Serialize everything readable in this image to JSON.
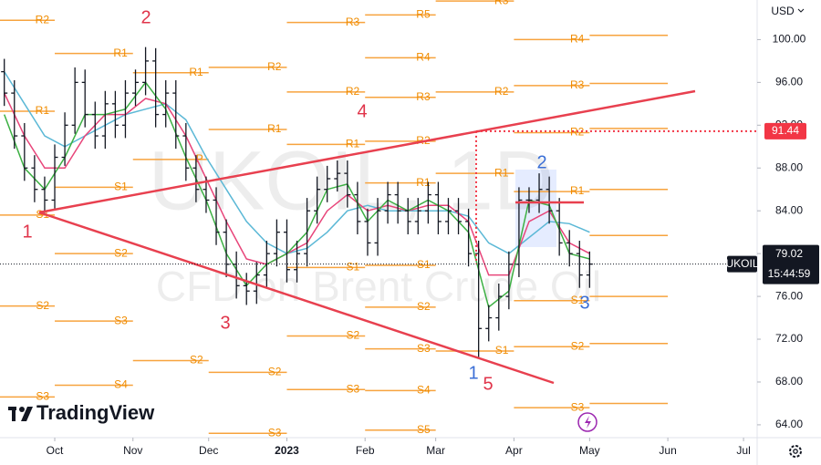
{
  "chart_data": {
    "type": "ohlc",
    "watermark": [
      "UKOIL, 1D",
      "CFD on Brent Crude Oil"
    ],
    "currency": "USD",
    "brand": "TradingView",
    "color": "#131722",
    "xlim": [
      -21.7,
      278.4
    ],
    "ylim": [
      62.8,
      103.7
    ],
    "xticks": [
      {
        "value": 0,
        "label": "Oct"
      },
      {
        "value": 31,
        "label": "Nov"
      },
      {
        "value": 61,
        "label": "Dec"
      },
      {
        "value": 92,
        "label": "2023"
      },
      {
        "value": 123,
        "label": "Feb"
      },
      {
        "value": 151,
        "label": "Mar"
      },
      {
        "value": 182,
        "label": "Apr"
      },
      {
        "value": 212,
        "label": "May"
      },
      {
        "value": 243,
        "label": "Jun"
      },
      {
        "value": 273,
        "label": "Jul"
      }
    ],
    "yticks": [
      {
        "value": 64,
        "label": "64.00"
      },
      {
        "value": 68,
        "label": "68.00"
      },
      {
        "value": 72,
        "label": "72.00"
      },
      {
        "value": 76,
        "label": "76.00"
      },
      {
        "value": 80,
        "label": "80.00"
      },
      {
        "value": 84,
        "label": "84.00"
      },
      {
        "value": 88,
        "label": "88.00"
      },
      {
        "value": 92,
        "label": "92.00"
      },
      {
        "value": 96,
        "label": "96.00"
      },
      {
        "value": 100,
        "label": "100.00"
      }
    ],
    "x": [
      -20,
      -16,
      -12,
      -8,
      -4,
      0,
      4,
      8,
      12,
      16,
      20,
      24,
      28,
      32,
      36,
      40,
      44,
      48,
      52,
      56,
      60,
      64,
      68,
      72,
      76,
      80,
      84,
      88,
      92,
      96,
      100,
      104,
      108,
      112,
      116,
      120,
      124,
      128,
      132,
      136,
      140,
      144,
      148,
      152,
      156,
      160,
      164,
      168,
      172,
      176,
      180,
      184,
      188,
      192,
      196,
      200,
      204,
      208,
      212
    ],
    "open": [
      97,
      95,
      91,
      88,
      86,
      85,
      89,
      92,
      96,
      93,
      91,
      94,
      92,
      95,
      96,
      98,
      93,
      95,
      91,
      88,
      86,
      85,
      82,
      79,
      77,
      76.5,
      78,
      80,
      82,
      78.5,
      80,
      84,
      86,
      87,
      87.5,
      85.5,
      83,
      81,
      84,
      85.5,
      84,
      83,
      84,
      85.5,
      83,
      84,
      83,
      80,
      73,
      74,
      76,
      79,
      85,
      85,
      86,
      84,
      81,
      80,
      78
    ],
    "high": [
      98.2,
      96.2,
      92.2,
      89.2,
      87.2,
      90.2,
      93.2,
      97.4,
      97.2,
      94.2,
      95.2,
      95.2,
      96.2,
      97.2,
      99.3,
      99.2,
      96.2,
      96.2,
      92.2,
      89.2,
      87.2,
      86.2,
      83.2,
      80.2,
      78.2,
      79.2,
      81.2,
      83.2,
      83.2,
      81.2,
      85.2,
      87.2,
      88.2,
      88.7,
      88.7,
      86.7,
      84.2,
      85.2,
      86.7,
      86.7,
      85.2,
      85.2,
      86.7,
      86.7,
      85.2,
      85.2,
      84.2,
      81.2,
      75.2,
      77.2,
      80.2,
      86.2,
      86.2,
      87.5,
      87.2,
      85.2,
      82.2,
      81.2,
      80.2
    ],
    "low": [
      93.8,
      89.8,
      86.8,
      84.8,
      83.8,
      84.2,
      88.2,
      91.2,
      91.8,
      89.8,
      89.8,
      90.8,
      90.8,
      93.8,
      94.8,
      91.8,
      91.8,
      89.8,
      86.8,
      84.8,
      83.8,
      80.8,
      77.8,
      75.8,
      75.2,
      75.3,
      76.8,
      78.8,
      77.3,
      77.3,
      78.8,
      82.8,
      84.8,
      85.8,
      84.3,
      81.8,
      79.8,
      79.8,
      82.8,
      82.8,
      81.8,
      81.8,
      82.8,
      81.8,
      81.8,
      81.8,
      78.8,
      70.2,
      71.8,
      72.8,
      74.8,
      77.8,
      83.8,
      83.8,
      82.8,
      79.8,
      78.8,
      76.8,
      76.8
    ],
    "close": [
      95,
      91,
      88,
      86,
      85,
      89,
      92,
      96,
      93,
      91,
      94,
      92,
      95,
      96,
      98,
      93,
      95,
      91,
      88,
      86,
      85,
      82,
      79,
      77,
      76.5,
      78,
      80,
      82,
      78.5,
      80,
      84,
      86,
      87,
      87.5,
      85.5,
      83,
      81,
      84,
      85.5,
      84,
      83,
      84,
      85.5,
      83,
      84,
      83,
      80,
      73,
      74,
      76,
      79,
      85,
      85,
      86,
      84,
      81,
      80,
      78,
      79.02
    ],
    "moving_averages": [
      {
        "color": "#5bb8d6",
        "x": [
          -20,
          -12,
          -4,
          4,
          12,
          20,
          28,
          36,
          44,
          52,
          60,
          68,
          76,
          84,
          92,
          100,
          108,
          116,
          124,
          132,
          140,
          148,
          156,
          164,
          172,
          180,
          188,
          196,
          204,
          212
        ],
        "values": [
          97,
          94,
          91,
          90,
          91,
          92,
          93,
          93.5,
          94,
          92.5,
          89,
          86,
          83,
          81,
          80,
          80.5,
          82,
          84,
          84.5,
          84,
          84,
          84,
          84,
          83.5,
          81,
          80,
          81.5,
          83,
          82.8,
          82
        ]
      },
      {
        "color": "#e8457a",
        "x": [
          -20,
          -12,
          -4,
          4,
          12,
          20,
          28,
          36,
          44,
          52,
          60,
          68,
          76,
          84,
          92,
          100,
          108,
          116,
          124,
          132,
          140,
          148,
          156,
          164,
          172,
          180,
          188,
          196,
          204,
          212
        ],
        "values": [
          95,
          91,
          88,
          88,
          91,
          93,
          93,
          94.5,
          94,
          91,
          87,
          83,
          79.5,
          79,
          80,
          81,
          84,
          85.5,
          84,
          84.5,
          84,
          84.5,
          84.5,
          83,
          78,
          78,
          83,
          84,
          81,
          80
        ]
      },
      {
        "color": "#3cb043",
        "x": [
          -20,
          -12,
          -4,
          4,
          12,
          20,
          28,
          36,
          44,
          52,
          60,
          68,
          76,
          84,
          92,
          100,
          108,
          116,
          124,
          132,
          140,
          148,
          156,
          164,
          172,
          180,
          188,
          196,
          204,
          212
        ],
        "values": [
          93,
          88,
          86,
          89,
          93,
          93,
          93.5,
          96,
          93.5,
          89,
          85,
          80,
          77,
          79,
          80,
          82,
          86,
          86.5,
          83,
          85,
          84,
          85,
          84,
          82,
          75,
          76.5,
          85,
          84.5,
          80,
          79.5
        ]
      }
    ],
    "pivots": [
      {
        "start": -22,
        "end": 0,
        "levels": [
          {
            "label": "R2",
            "value": 101.8
          },
          {
            "label": "R1",
            "value": 93.3
          },
          {
            "label": "S1",
            "value": 83.6
          },
          {
            "label": "S2",
            "value": 75.1
          },
          {
            "label": "S3",
            "value": 66.6
          }
        ]
      },
      {
        "start": 0,
        "end": 31,
        "levels": [
          {
            "label": "R1",
            "value": 98.7
          },
          {
            "label": "S1",
            "value": 86.2
          },
          {
            "label": "S2",
            "value": 80
          },
          {
            "label": "S3",
            "value": 73.7
          },
          {
            "label": "S4",
            "value": 67.7
          }
        ]
      },
      {
        "start": 31,
        "end": 61,
        "levels": [
          {
            "label": "R1",
            "value": 96.9
          },
          {
            "label": "P",
            "value": 88.8
          },
          {
            "label": "S2",
            "value": 70
          }
        ]
      },
      {
        "start": 61,
        "end": 92,
        "levels": [
          {
            "label": "R2",
            "value": 97.4
          },
          {
            "label": "R1",
            "value": 91.6
          },
          {
            "label": "S2",
            "value": 68.9
          },
          {
            "label": "S3",
            "value": 63.2
          }
        ]
      },
      {
        "start": 92,
        "end": 123,
        "levels": [
          {
            "label": "R3",
            "value": 101.6
          },
          {
            "label": "R2",
            "value": 95.1
          },
          {
            "label": "R1",
            "value": 90.2
          },
          {
            "label": "S1",
            "value": 78.7
          },
          {
            "label": "S2",
            "value": 72.3
          },
          {
            "label": "S3",
            "value": 67.3
          }
        ]
      },
      {
        "start": 123,
        "end": 151,
        "levels": [
          {
            "label": "R5",
            "value": 102.3
          },
          {
            "label": "R4",
            "value": 98.3
          },
          {
            "label": "R3",
            "value": 94.6
          },
          {
            "label": "R2",
            "value": 90.5
          },
          {
            "label": "R1",
            "value": 86.6
          },
          {
            "label": "S1",
            "value": 78.9
          },
          {
            "label": "S2",
            "value": 75
          },
          {
            "label": "S3",
            "value": 71.1
          },
          {
            "label": "S4",
            "value": 67.2
          },
          {
            "label": "S5",
            "value": 63.5
          }
        ]
      },
      {
        "start": 151,
        "end": 182,
        "levels": [
          {
            "label": "R3",
            "value": 103.6
          },
          {
            "label": "R2",
            "value": 95.1
          },
          {
            "label": "R1",
            "value": 87.5
          },
          {
            "label": "S1",
            "value": 70.9
          }
        ]
      },
      {
        "start": 182,
        "end": 212,
        "levels": [
          {
            "label": "R4",
            "value": 100
          },
          {
            "label": "R3",
            "value": 95.7
          },
          {
            "label": "R2",
            "value": 91.3
          },
          {
            "label": "R1",
            "value": 85.8
          },
          {
            "label": "S1",
            "value": 75.6
          },
          {
            "label": "S2",
            "value": 71.3
          },
          {
            "label": "S3",
            "value": 65.6
          }
        ]
      },
      {
        "start": 212,
        "end": 243,
        "levels": [
          {
            "label": null,
            "value": 100.4
          },
          {
            "label": null,
            "value": 95.9
          },
          {
            "label": null,
            "value": 91.7
          },
          {
            "label": null,
            "value": 86
          },
          {
            "label": null,
            "value": 81.7
          },
          {
            "label": null,
            "value": 76
          },
          {
            "label": null,
            "value": 71.6
          },
          {
            "label": null,
            "value": 66
          }
        ]
      }
    ],
    "waves": [
      {
        "text": "1",
        "color": "#e0344a"
      },
      {
        "text": "2",
        "color": "#e0344a"
      },
      {
        "text": "3",
        "color": "#e0344a"
      },
      {
        "text": "4",
        "color": "#e0344a"
      },
      {
        "text": "5",
        "color": "#e0344a"
      },
      {
        "text": "1",
        "color": "#3b6fd6"
      },
      {
        "text": "2",
        "color": "#3b6fd6"
      },
      {
        "text": "3",
        "color": "#3b6fd6"
      }
    ],
    "price_tag": {
      "name": "UKOIL",
      "value": 79.02,
      "time": "15:44:59"
    },
    "level_tag": {
      "value": 91.44,
      "color": "#f23645"
    }
  }
}
